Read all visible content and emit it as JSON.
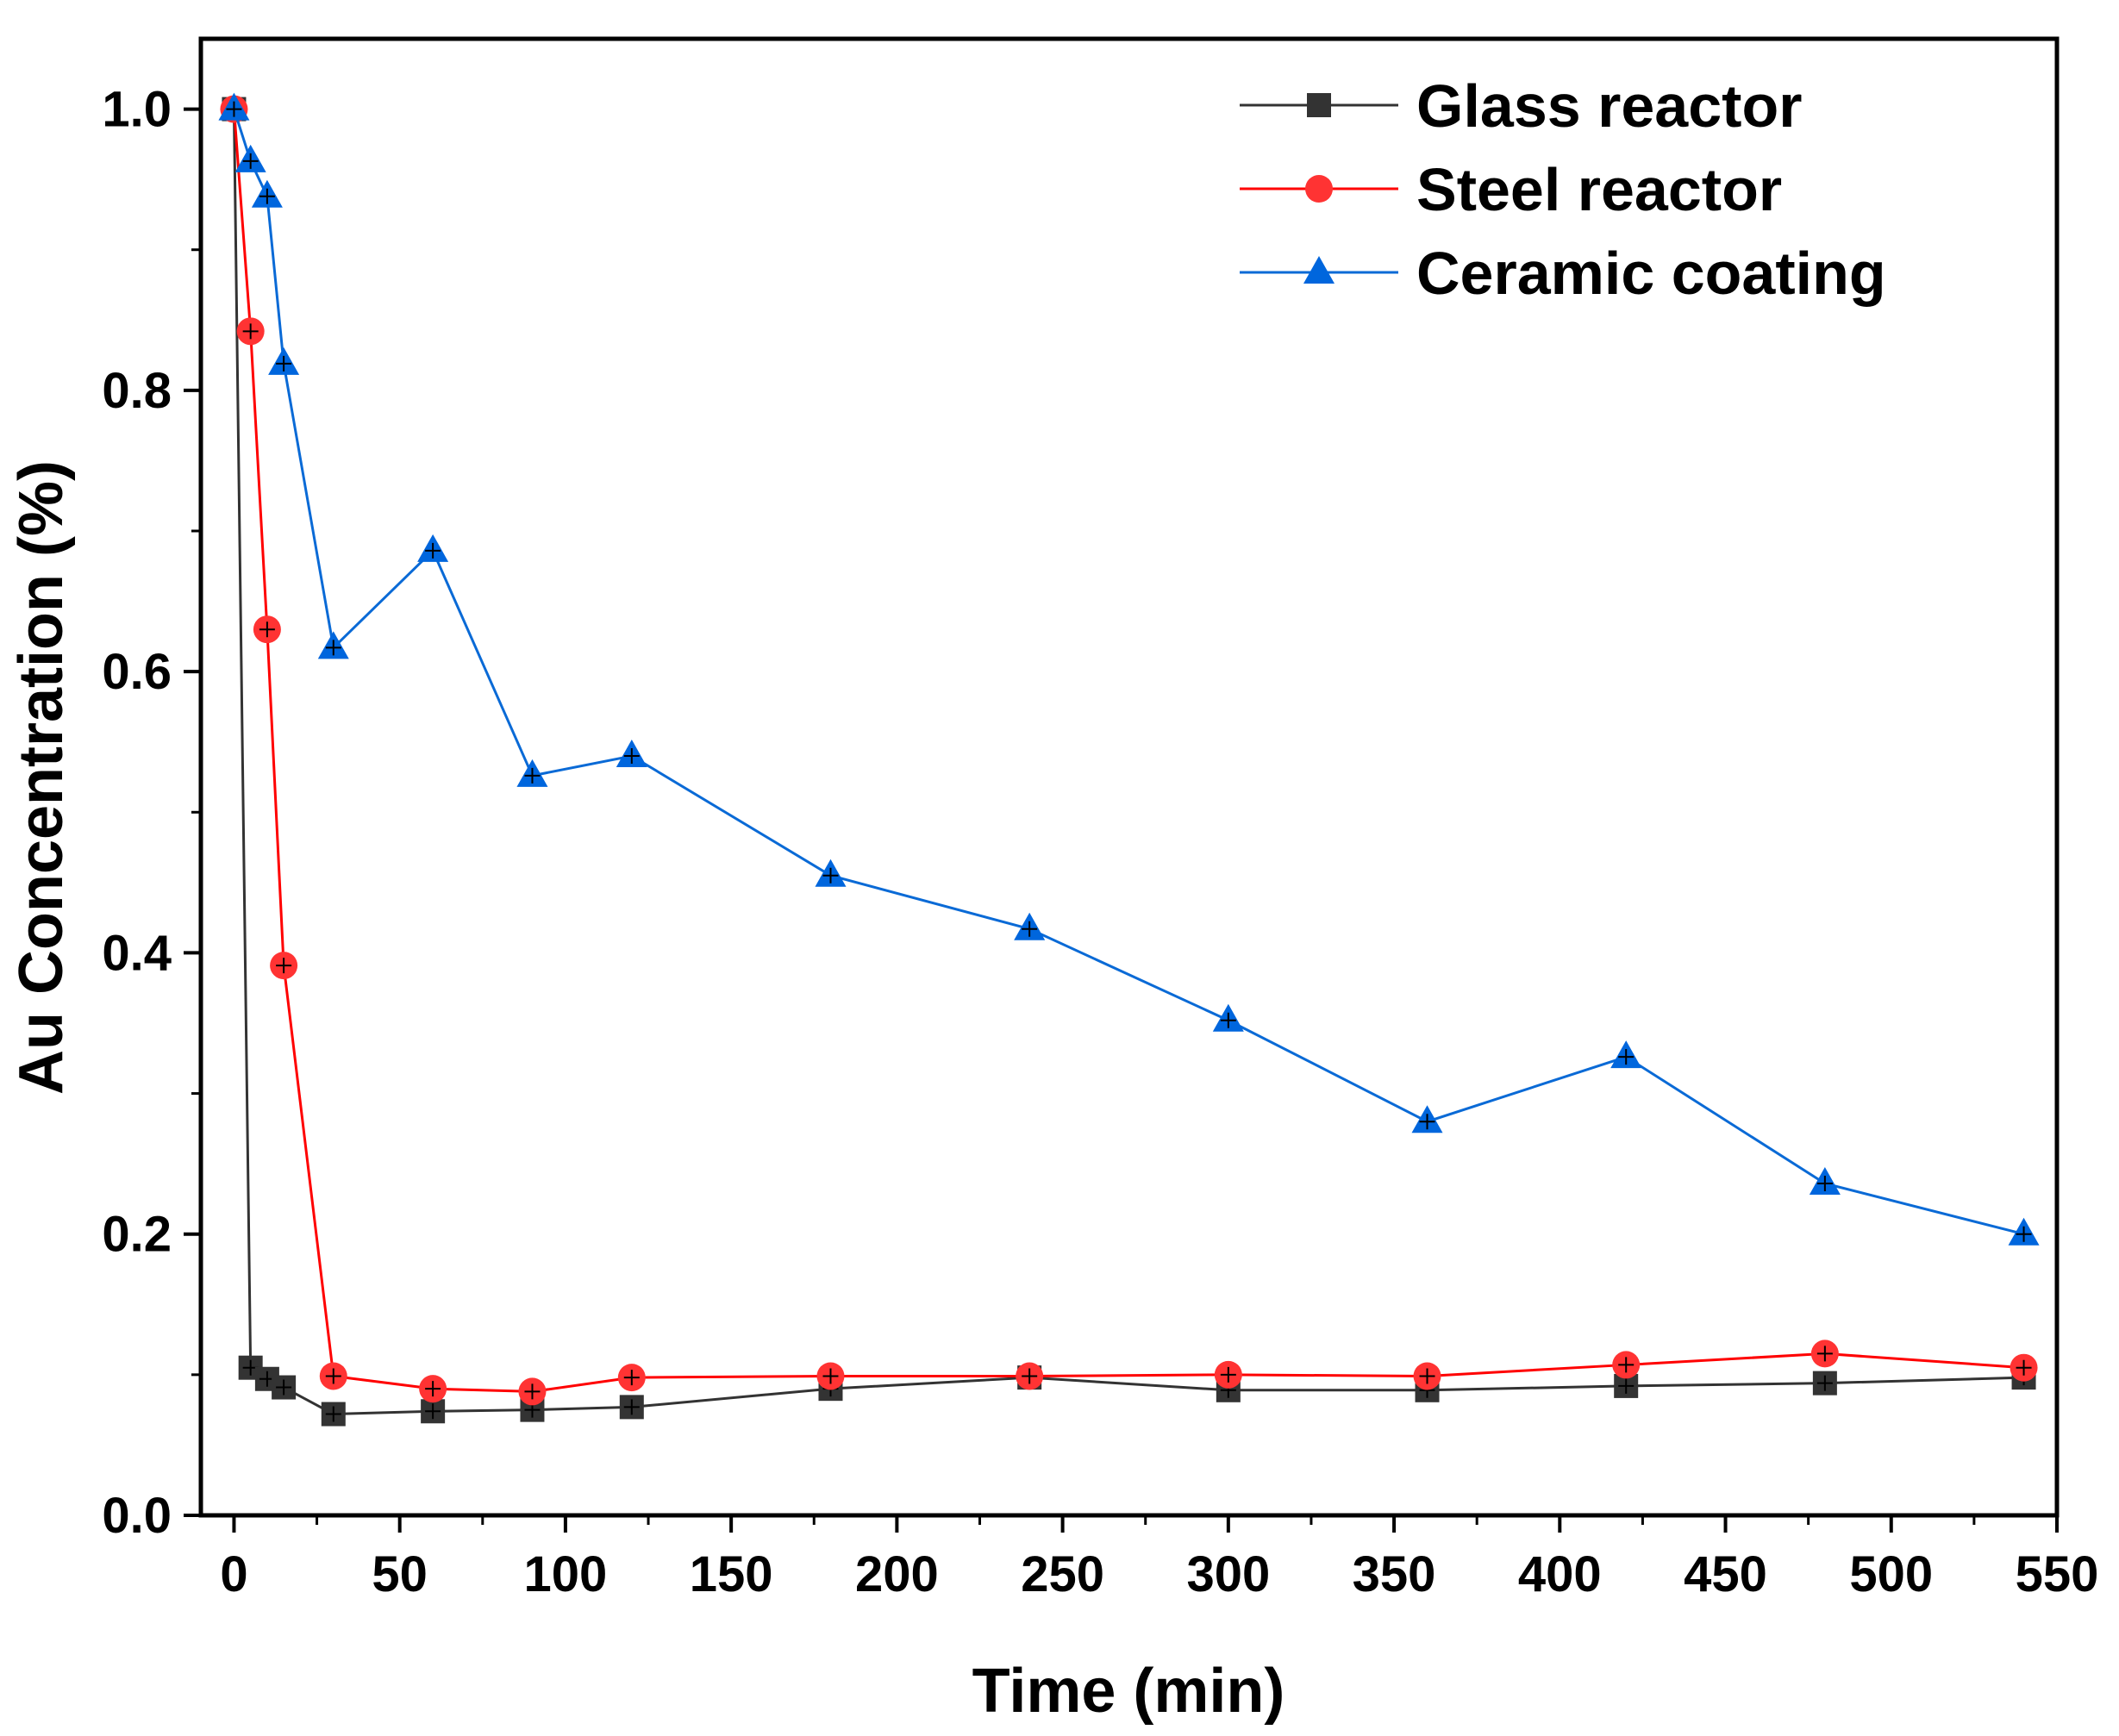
{
  "chart_data": {
    "type": "line",
    "title": "",
    "xlabel": "Time (min)",
    "ylabel": "Au Concentration (%)",
    "xlim": [
      -10,
      550
    ],
    "ylim": [
      0.0,
      1.05
    ],
    "x_ticks": [
      0,
      50,
      100,
      150,
      200,
      250,
      300,
      350,
      400,
      450,
      500,
      550
    ],
    "x_tick_labels": [
      "0",
      "50",
      "100",
      "150",
      "200",
      "250",
      "300",
      "350",
      "400",
      "450",
      "500",
      "550"
    ],
    "y_ticks": [
      0.0,
      0.2,
      0.4,
      0.6,
      0.8,
      1.0
    ],
    "y_tick_labels": [
      "0.0",
      "0.2",
      "0.4",
      "0.6",
      "0.8",
      "1.0"
    ],
    "grid": false,
    "legend_position": "top-right",
    "series": [
      {
        "name": "Glass reactor",
        "color": "#333333",
        "line_color": "#333333",
        "marker": "square",
        "x": [
          0,
          5,
          10,
          15,
          30,
          60,
          90,
          120,
          180,
          240,
          300,
          360,
          420,
          480,
          540
        ],
        "values": [
          1.0,
          0.105,
          0.097,
          0.091,
          0.072,
          0.074,
          0.075,
          0.077,
          0.09,
          0.098,
          0.089,
          0.089,
          0.092,
          0.094,
          0.098
        ]
      },
      {
        "name": "Steel reactor",
        "color": "#ff3333",
        "line_color": "#ff0000",
        "marker": "circle",
        "x": [
          0,
          5,
          10,
          15,
          30,
          60,
          90,
          120,
          180,
          240,
          300,
          360,
          420,
          480,
          540
        ],
        "values": [
          1.0,
          0.842,
          0.63,
          0.391,
          0.099,
          0.09,
          0.088,
          0.098,
          0.099,
          0.099,
          0.1,
          0.099,
          0.107,
          0.115,
          0.105
        ]
      },
      {
        "name": "Ceramic coating",
        "color": "#0066dd",
        "line_color": "#0a6ad6",
        "marker": "triangle",
        "x": [
          0,
          5,
          10,
          15,
          30,
          60,
          90,
          120,
          180,
          240,
          300,
          360,
          420,
          480,
          540
        ],
        "values": [
          1.0,
          0.963,
          0.938,
          0.819,
          0.617,
          0.686,
          0.526,
          0.54,
          0.455,
          0.417,
          0.352,
          0.28,
          0.326,
          0.236,
          0.2
        ]
      }
    ]
  }
}
